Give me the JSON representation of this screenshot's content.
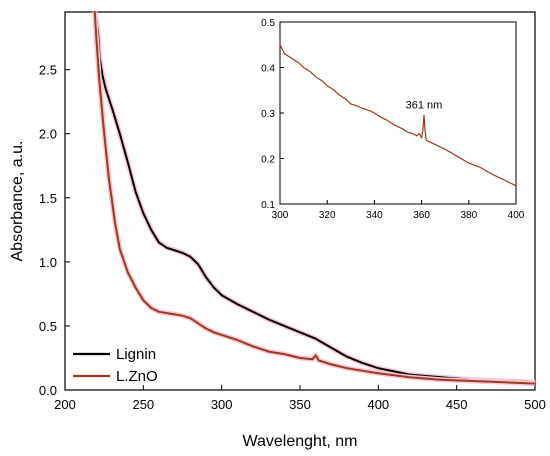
{
  "chart_data": [
    {
      "type": "line",
      "xlabel": "Wavelenght, nm",
      "ylabel": "Absorbance, a.u.",
      "xlim": [
        200,
        500
      ],
      "ylim": [
        0.0,
        2.95
      ],
      "x_ticks": [
        "200",
        "250",
        "300",
        "350",
        "400",
        "450",
        "500"
      ],
      "y_ticks": [
        "0.0",
        "0.5",
        "1.0",
        "1.5",
        "2.0",
        "2.5"
      ],
      "grid": false,
      "legend": "bottom-left",
      "series": [
        {
          "name": "Lignin",
          "color": "#000000",
          "x": [
            219,
            221,
            222,
            224,
            226,
            230,
            235,
            240,
            245,
            250,
            255,
            260,
            265,
            270,
            275,
            280,
            285,
            290,
            295,
            300,
            310,
            320,
            330,
            340,
            350,
            360,
            370,
            380,
            390,
            400,
            420,
            440,
            460,
            480,
            500
          ],
          "y": [
            2.95,
            2.8,
            2.6,
            2.45,
            2.35,
            2.2,
            2.0,
            1.78,
            1.55,
            1.38,
            1.25,
            1.15,
            1.11,
            1.09,
            1.07,
            1.04,
            0.98,
            0.88,
            0.8,
            0.74,
            0.67,
            0.61,
            0.55,
            0.5,
            0.45,
            0.4,
            0.33,
            0.26,
            0.21,
            0.17,
            0.12,
            0.1,
            0.08,
            0.07,
            0.06
          ]
        },
        {
          "name": "L.ZnO",
          "color": "#a0381e",
          "x": [
            219,
            220,
            222,
            225,
            228,
            232,
            235,
            240,
            245,
            250,
            255,
            260,
            265,
            270,
            275,
            280,
            285,
            290,
            295,
            300,
            310,
            320,
            330,
            340,
            350,
            358,
            360,
            362,
            370,
            380,
            400,
            420,
            440,
            460,
            480,
            500
          ],
          "y": [
            2.95,
            2.75,
            2.4,
            2.0,
            1.65,
            1.3,
            1.1,
            0.92,
            0.8,
            0.7,
            0.64,
            0.61,
            0.6,
            0.59,
            0.58,
            0.56,
            0.52,
            0.48,
            0.45,
            0.43,
            0.39,
            0.34,
            0.3,
            0.28,
            0.25,
            0.24,
            0.27,
            0.23,
            0.2,
            0.17,
            0.13,
            0.1,
            0.08,
            0.07,
            0.06,
            0.05
          ]
        }
      ],
      "legend_entries": [
        "Lignin",
        "L.ZnO"
      ]
    },
    {
      "type": "line",
      "xlabel": "",
      "ylabel": "",
      "xlim": [
        300,
        400
      ],
      "ylim": [
        0.1,
        0.5
      ],
      "x_ticks": [
        "300",
        "320",
        "340",
        "360",
        "380",
        "400"
      ],
      "y_ticks": [
        "0.1",
        "0.2",
        "0.3",
        "0.4",
        "0.5"
      ],
      "grid": false,
      "annotation": "361 nm",
      "annotation_x": 361,
      "annotation_y": 0.31,
      "series": [
        {
          "color": "#a0381e",
          "x": [
            300,
            302,
            305,
            308,
            310,
            313,
            315,
            318,
            320,
            323,
            325,
            328,
            330,
            333,
            335,
            338,
            340,
            343,
            345,
            348,
            350,
            352,
            354,
            356,
            358,
            359,
            360,
            360.5,
            361,
            361.5,
            362,
            364,
            366,
            370,
            375,
            380,
            385,
            390,
            395,
            400
          ],
          "y": [
            0.45,
            0.43,
            0.42,
            0.41,
            0.4,
            0.39,
            0.38,
            0.37,
            0.36,
            0.35,
            0.34,
            0.33,
            0.32,
            0.315,
            0.31,
            0.305,
            0.3,
            0.29,
            0.285,
            0.275,
            0.27,
            0.265,
            0.258,
            0.255,
            0.25,
            0.255,
            0.245,
            0.26,
            0.295,
            0.26,
            0.24,
            0.235,
            0.23,
            0.22,
            0.205,
            0.19,
            0.18,
            0.165,
            0.153,
            0.14
          ]
        }
      ]
    }
  ]
}
